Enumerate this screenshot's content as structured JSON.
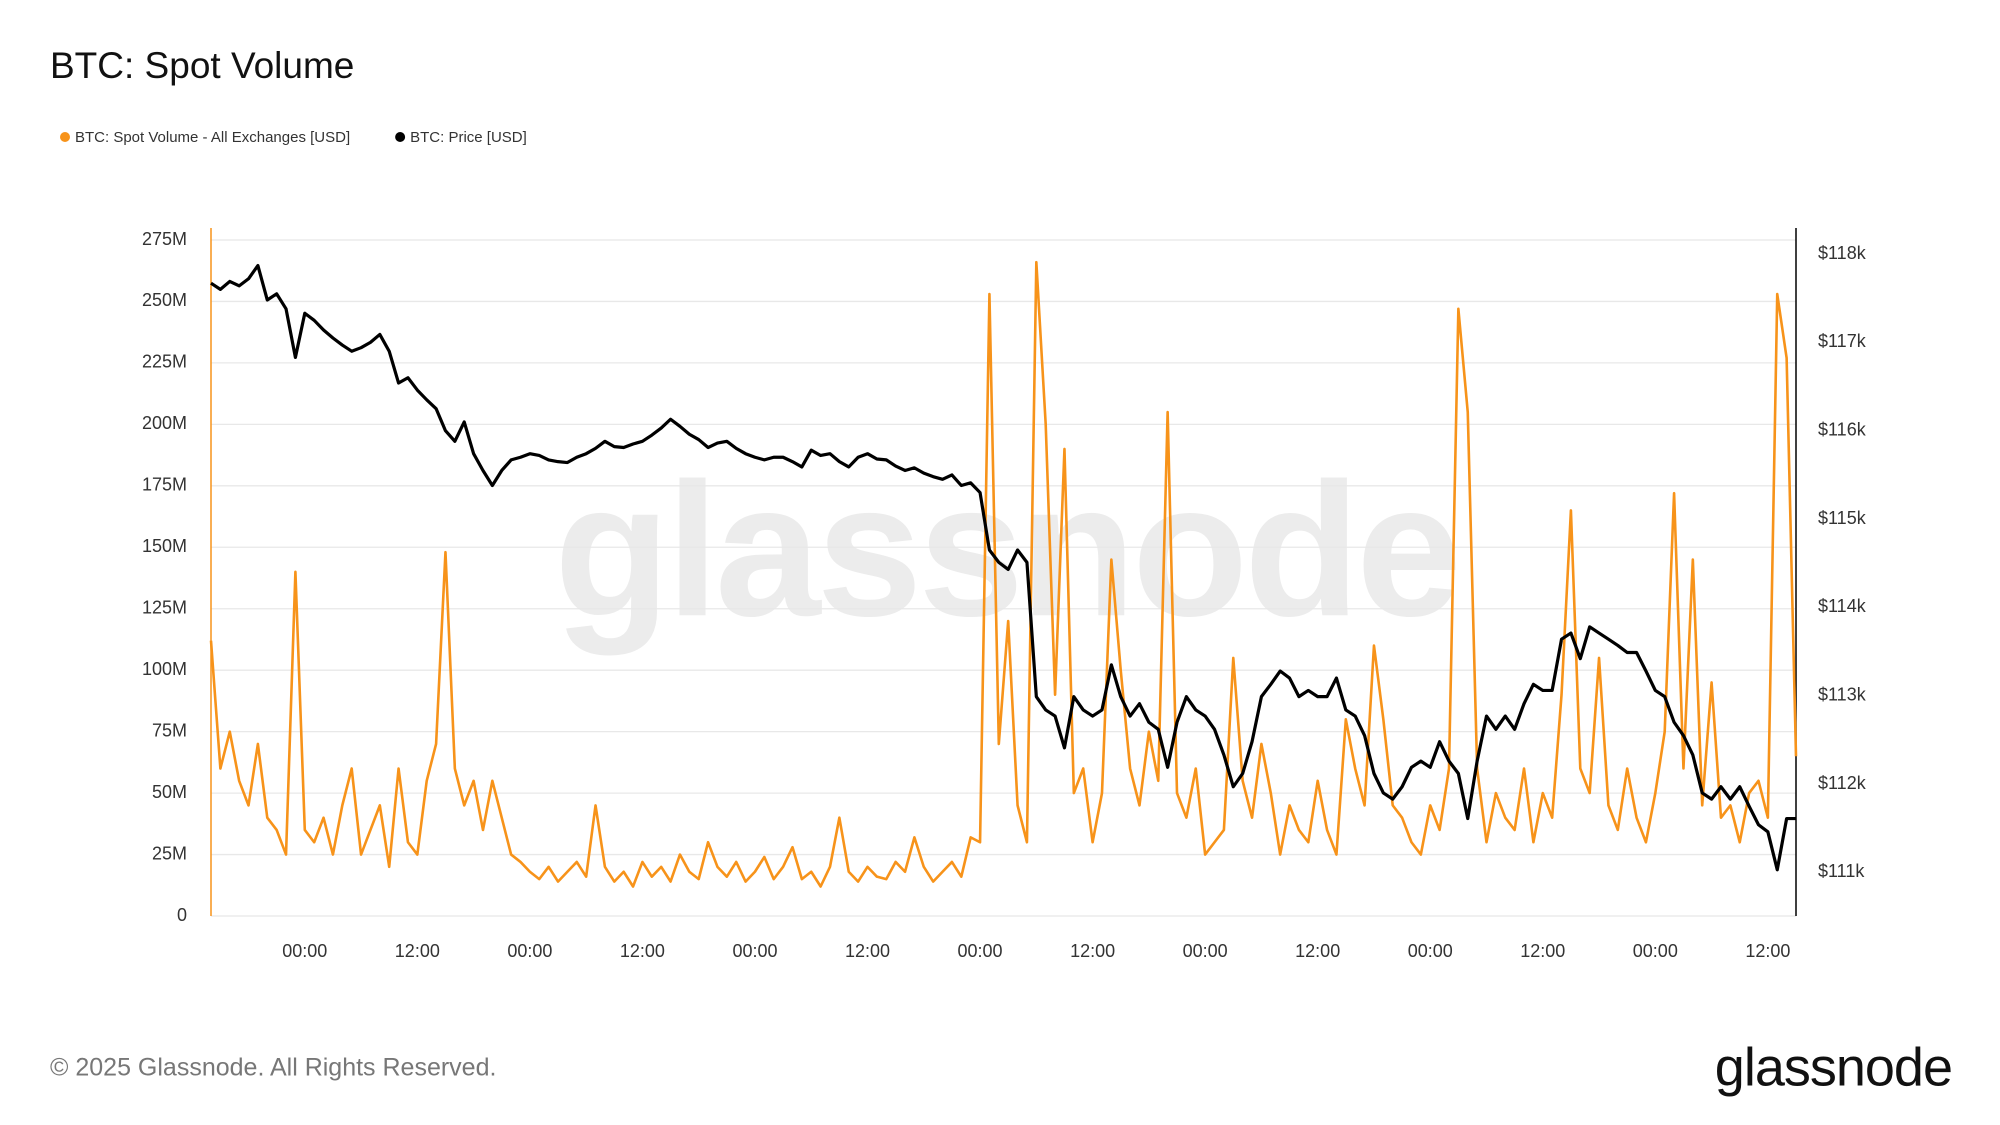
{
  "chart_data": {
    "type": "line",
    "title": "BTC: Spot Volume",
    "watermark": "glassnode",
    "copyright": "© 2025 Glassnode. All Rights Reserved.",
    "logo": "glassnode",
    "xlim": [
      0,
      169
    ],
    "xticks": [
      {
        "value": 10,
        "label": "00:00"
      },
      {
        "value": 22,
        "label": "12:00"
      },
      {
        "value": 34,
        "label": "00:00"
      },
      {
        "value": 46,
        "label": "12:00"
      },
      {
        "value": 58,
        "label": "00:00"
      },
      {
        "value": 70,
        "label": "12:00"
      },
      {
        "value": 82,
        "label": "00:00"
      },
      {
        "value": 94,
        "label": "12:00"
      },
      {
        "value": 106,
        "label": "00:00"
      },
      {
        "value": 118,
        "label": "12:00"
      },
      {
        "value": 130,
        "label": "00:00"
      },
      {
        "value": 142,
        "label": "12:00"
      },
      {
        "value": 154,
        "label": "00:00"
      },
      {
        "value": 166,
        "label": "12:00"
      }
    ],
    "ylim": [
      0,
      275000000
    ],
    "yticks": [
      0,
      {
        "value": 25000000,
        "label": "25M"
      },
      {
        "value": 50000000,
        "label": "50M"
      },
      {
        "value": 75000000,
        "label": "75M"
      },
      {
        "value": 100000000,
        "label": "100M"
      },
      {
        "value": 125000000,
        "label": "125M"
      },
      {
        "value": 150000000,
        "label": "150M"
      },
      {
        "value": 175000000,
        "label": "175M"
      },
      {
        "value": 200000000,
        "label": "200M"
      },
      {
        "value": 225000000,
        "label": "225M"
      },
      {
        "value": 250000000,
        "label": "250M"
      },
      {
        "value": 275000000,
        "label": "275M"
      }
    ],
    "y2lim": [
      110507,
      118159
    ],
    "y2ticks": [
      {
        "value": 111000,
        "label": "$111k"
      },
      {
        "value": 112000,
        "label": "$112k"
      },
      {
        "value": 113000,
        "label": "$113k"
      },
      {
        "value": 114000,
        "label": "$114k"
      },
      {
        "value": 115000,
        "label": "$115k"
      },
      {
        "value": 116000,
        "label": "$116k"
      },
      {
        "value": 117000,
        "label": "$117k"
      },
      {
        "value": 118000,
        "label": "$118k"
      }
    ],
    "grid": true,
    "x": [
      0,
      1,
      2,
      3,
      4,
      5,
      6,
      7,
      8,
      9,
      10,
      11,
      12,
      13,
      14,
      15,
      16,
      17,
      18,
      19,
      20,
      21,
      22,
      23,
      24,
      25,
      26,
      27,
      28,
      29,
      30,
      31,
      32,
      33,
      34,
      35,
      36,
      37,
      38,
      39,
      40,
      41,
      42,
      43,
      44,
      45,
      46,
      47,
      48,
      49,
      50,
      51,
      52,
      53,
      54,
      55,
      56,
      57,
      58,
      59,
      60,
      61,
      62,
      63,
      64,
      65,
      66,
      67,
      68,
      69,
      70,
      71,
      72,
      73,
      74,
      75,
      76,
      77,
      78,
      79,
      80,
      81,
      82,
      83,
      84,
      85,
      86,
      87,
      88,
      89,
      90,
      91,
      92,
      93,
      94,
      95,
      96,
      97,
      98,
      99,
      100,
      101,
      102,
      103,
      104,
      105,
      106,
      107,
      108,
      109,
      110,
      111,
      112,
      113,
      114,
      115,
      116,
      117,
      118,
      119,
      120,
      121,
      122,
      123,
      124,
      125,
      126,
      127,
      128,
      129,
      130,
      131,
      132,
      133,
      134,
      135,
      136,
      137,
      138,
      139,
      140,
      141,
      142,
      143,
      144,
      145,
      146,
      147,
      148,
      149,
      150,
      151,
      152,
      153,
      154,
      155,
      156,
      157,
      158,
      159,
      160,
      161,
      162,
      163,
      164,
      165,
      166,
      167,
      168,
      169
    ],
    "series": [
      {
        "name": "BTC: Spot Volume - All Exchanges [USD]",
        "color": "#f7931a",
        "values": [
          112000000,
          60000000,
          75000000,
          55000000,
          45000000,
          70000000,
          40000000,
          35000000,
          25000000,
          140000000,
          35000000,
          30000000,
          40000000,
          25000000,
          45000000,
          60000000,
          25000000,
          35000000,
          45000000,
          20000000,
          60000000,
          30000000,
          25000000,
          55000000,
          70000000,
          148000000,
          60000000,
          45000000,
          55000000,
          35000000,
          55000000,
          40000000,
          25000000,
          22000000,
          18000000,
          15000000,
          20000000,
          14000000,
          18000000,
          22000000,
          16000000,
          45000000,
          20000000,
          14000000,
          18000000,
          12000000,
          22000000,
          16000000,
          20000000,
          14000000,
          25000000,
          18000000,
          15000000,
          30000000,
          20000000,
          16000000,
          22000000,
          14000000,
          18000000,
          24000000,
          15000000,
          20000000,
          28000000,
          15000000,
          18000000,
          12000000,
          20000000,
          40000000,
          18000000,
          14000000,
          20000000,
          16000000,
          15000000,
          22000000,
          18000000,
          32000000,
          20000000,
          14000000,
          18000000,
          22000000,
          16000000,
          32000000,
          30000000,
          253000000,
          70000000,
          120000000,
          45000000,
          30000000,
          266000000,
          200000000,
          90000000,
          190000000,
          50000000,
          60000000,
          30000000,
          50000000,
          145000000,
          100000000,
          60000000,
          45000000,
          75000000,
          55000000,
          205000000,
          50000000,
          40000000,
          60000000,
          25000000,
          30000000,
          35000000,
          105000000,
          55000000,
          40000000,
          70000000,
          50000000,
          25000000,
          45000000,
          35000000,
          30000000,
          55000000,
          35000000,
          25000000,
          80000000,
          60000000,
          45000000,
          110000000,
          80000000,
          45000000,
          40000000,
          30000000,
          25000000,
          45000000,
          35000000,
          60000000,
          247000000,
          205000000,
          60000000,
          30000000,
          50000000,
          40000000,
          35000000,
          60000000,
          30000000,
          50000000,
          40000000,
          90000000,
          165000000,
          60000000,
          50000000,
          105000000,
          45000000,
          35000000,
          60000000,
          40000000,
          30000000,
          50000000,
          75000000,
          172000000,
          60000000,
          145000000,
          45000000,
          95000000,
          40000000,
          45000000,
          30000000,
          50000000,
          55000000,
          40000000,
          253000000,
          227000000,
          65000000
        ]
      },
      {
        "name": "BTC: Price [USD]",
        "color": "#000000",
        "axis": "y2",
        "values": [
          117670,
          117600,
          117690,
          117640,
          117720,
          117870,
          117480,
          117550,
          117380,
          116830,
          117330,
          117250,
          117140,
          117050,
          116970,
          116900,
          116940,
          117000,
          117090,
          116900,
          116540,
          116600,
          116460,
          116350,
          116250,
          116000,
          115880,
          116100,
          115740,
          115550,
          115380,
          115550,
          115670,
          115700,
          115740,
          115720,
          115670,
          115650,
          115640,
          115700,
          115740,
          115800,
          115880,
          115820,
          115810,
          115850,
          115880,
          115950,
          116030,
          116130,
          116050,
          115960,
          115900,
          115810,
          115860,
          115880,
          115800,
          115740,
          115700,
          115670,
          115700,
          115700,
          115650,
          115590,
          115780,
          115720,
          115740,
          115650,
          115590,
          115700,
          115740,
          115680,
          115670,
          115600,
          115550,
          115580,
          115520,
          115480,
          115450,
          115500,
          115380,
          115410,
          115300,
          114650,
          114510,
          114430,
          114650,
          114510,
          112990,
          112840,
          112770,
          112410,
          112990,
          112840,
          112770,
          112840,
          113350,
          112990,
          112770,
          112910,
          112700,
          112620,
          112190,
          112700,
          112990,
          112840,
          112770,
          112620,
          112330,
          111970,
          112120,
          112480,
          112990,
          113130,
          113280,
          113200,
          112990,
          113060,
          112990,
          112990,
          113200,
          112840,
          112770,
          112550,
          112120,
          111900,
          111830,
          111970,
          112190,
          112260,
          112190,
          112480,
          112260,
          112120,
          111610,
          112260,
          112770,
          112620,
          112770,
          112620,
          112910,
          113130,
          113060,
          113060,
          113640,
          113710,
          113420,
          113780,
          113710,
          113640,
          113570,
          113490,
          113490,
          113280,
          113060,
          112990,
          112700,
          112550,
          112330,
          111900,
          111830,
          111970,
          111830,
          111970,
          111750,
          111540,
          111460,
          111030,
          111610,
          111610
        ]
      }
    ]
  }
}
